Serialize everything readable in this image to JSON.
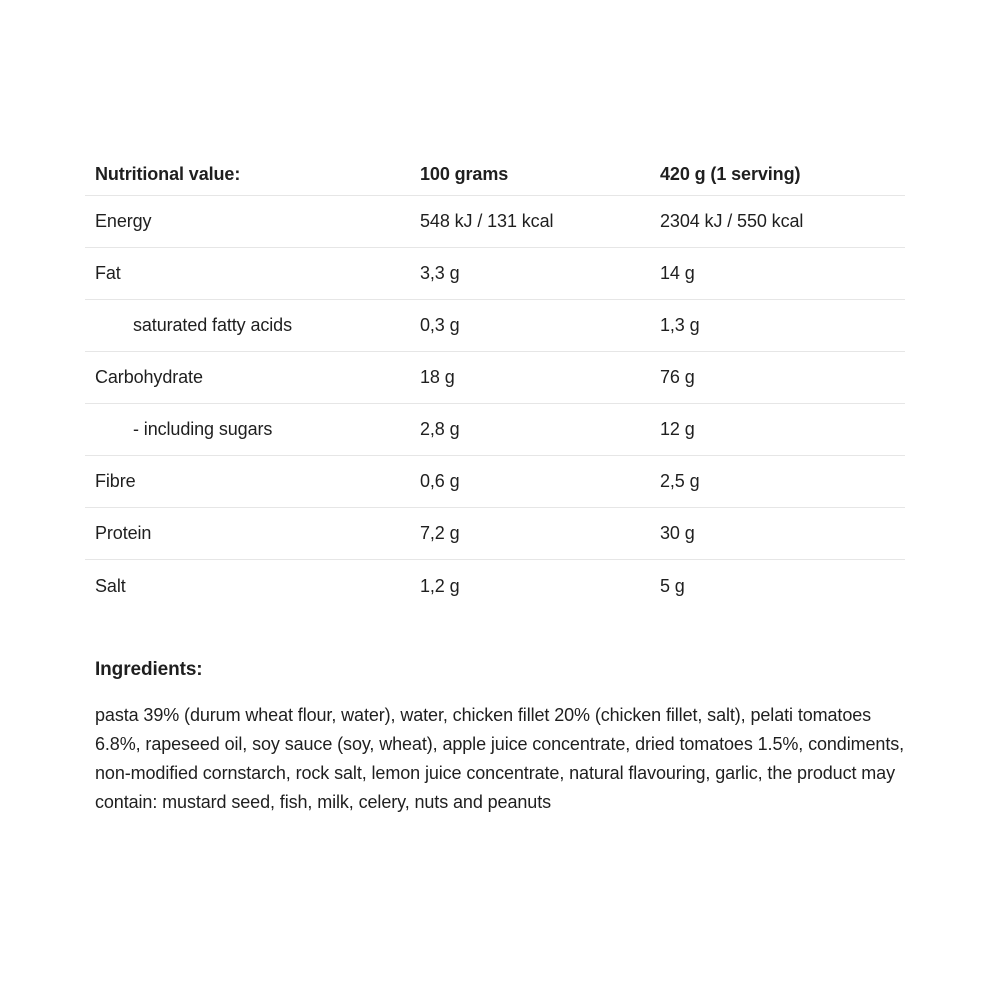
{
  "colors": {
    "background": "#ffffff",
    "text": "#1f1f1f",
    "divider": "#e6e6e6"
  },
  "table": {
    "header": {
      "label": "Nutritional value:",
      "per100": "100 grams",
      "serving": "420 g (1 serving)"
    },
    "rows": [
      {
        "label": "Energy",
        "indent": false,
        "per100": "548 kJ / 131 kcal",
        "serving": "2304 kJ / 550 kcal"
      },
      {
        "label": "Fat",
        "indent": false,
        "per100": "3,3 g",
        "serving": "14 g"
      },
      {
        "label": "saturated fatty acids",
        "indent": true,
        "per100": "0,3 g",
        "serving": "1,3 g"
      },
      {
        "label": "Carbohydrate",
        "indent": false,
        "per100": "18 g",
        "serving": "76 g"
      },
      {
        "label": "- including sugars",
        "indent": true,
        "per100": "2,8 g",
        "serving": "12 g"
      },
      {
        "label": "Fibre",
        "indent": false,
        "per100": "0,6 g",
        "serving": "2,5 g"
      },
      {
        "label": "Protein",
        "indent": false,
        "per100": "7,2 g",
        "serving": "30 g"
      },
      {
        "label": "Salt",
        "indent": false,
        "per100": "1,2 g",
        "serving": "5 g"
      }
    ]
  },
  "ingredients": {
    "heading": "Ingredients:",
    "text": "pasta 39% (durum wheat flour, water), water, chicken fillet 20% (chicken fillet, salt), pelati tomatoes 6.8%, rapeseed oil, soy sauce (soy, wheat), apple juice concentrate, dried tomatoes 1.5%, condiments, non-modified cornstarch, rock salt, lemon juice concentrate, natural flavouring, garlic, the product may contain: mustard seed, fish, milk, celery, nuts and peanuts"
  }
}
